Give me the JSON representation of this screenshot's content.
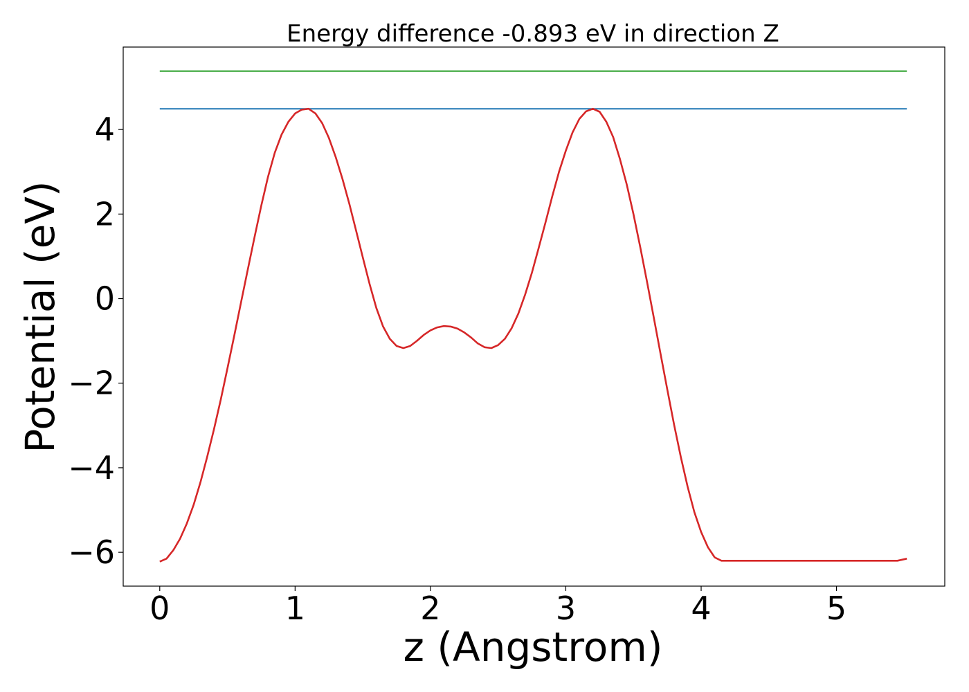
{
  "chart_data": {
    "type": "line",
    "title": "Energy difference -0.893 eV in direction Z",
    "xlabel": "z (Angstrom)",
    "ylabel": "Potential (eV)",
    "xlim": [
      -0.27,
      5.8
    ],
    "ylim": [
      -6.8,
      5.95
    ],
    "grid": false,
    "x_ticks": [
      0,
      1,
      2,
      3,
      4,
      5
    ],
    "x_tick_labels": [
      "0",
      "1",
      "2",
      "3",
      "4",
      "5"
    ],
    "y_ticks": [
      -6,
      -4,
      -2,
      0,
      2,
      4
    ],
    "y_tick_labels": [
      "−6",
      "−4",
      "−2",
      "0",
      "2",
      "4"
    ],
    "series": [
      {
        "color": "#2ca02c",
        "x": [
          0,
          5.52
        ],
        "y": [
          5.38,
          5.38
        ]
      },
      {
        "color": "#1f77b4",
        "x": [
          0,
          5.52
        ],
        "y": [
          4.49,
          4.49
        ]
      },
      {
        "color": "#d62728",
        "x": [
          0,
          0.05,
          0.1,
          0.15,
          0.2,
          0.25,
          0.3,
          0.35,
          0.4,
          0.45,
          0.5,
          0.55,
          0.6,
          0.65,
          0.7,
          0.75,
          0.8,
          0.85,
          0.9,
          0.95,
          1.0,
          1.05,
          1.1,
          1.15,
          1.2,
          1.25,
          1.3,
          1.35,
          1.4,
          1.45,
          1.5,
          1.55,
          1.6,
          1.65,
          1.7,
          1.75,
          1.8,
          1.85,
          1.9,
          1.95,
          2.0,
          2.05,
          2.1,
          2.15,
          2.2,
          2.25,
          2.3,
          2.35,
          2.4,
          2.45,
          2.5,
          2.55,
          2.6,
          2.65,
          2.7,
          2.75,
          2.8,
          2.85,
          2.9,
          2.95,
          3.0,
          3.05,
          3.1,
          3.15,
          3.2,
          3.25,
          3.3,
          3.35,
          3.4,
          3.45,
          3.5,
          3.55,
          3.6,
          3.65,
          3.7,
          3.75,
          3.8,
          3.85,
          3.9,
          3.95,
          4.0,
          4.05,
          4.1,
          4.15,
          4.2,
          4.25,
          4.3,
          4.35,
          4.4,
          4.45,
          4.5,
          4.55,
          4.6,
          4.65,
          4.7,
          4.75,
          4.8,
          4.85,
          4.9,
          4.95,
          5.0,
          5.05,
          5.1,
          5.15,
          5.2,
          5.25,
          5.3,
          5.35,
          5.4,
          5.45,
          5.52
        ],
        "y": [
          -6.22,
          -6.15,
          -5.95,
          -5.68,
          -5.32,
          -4.88,
          -4.35,
          -3.75,
          -3.1,
          -2.4,
          -1.65,
          -0.88,
          -0.1,
          0.68,
          1.45,
          2.2,
          2.88,
          3.45,
          3.88,
          4.18,
          4.38,
          4.47,
          4.49,
          4.38,
          4.15,
          3.8,
          3.35,
          2.83,
          2.25,
          1.62,
          0.98,
          0.35,
          -0.22,
          -0.66,
          -0.95,
          -1.12,
          -1.17,
          -1.12,
          -1.0,
          -0.86,
          -0.75,
          -0.68,
          -0.65,
          -0.66,
          -0.71,
          -0.8,
          -0.92,
          -1.06,
          -1.15,
          -1.17,
          -1.1,
          -0.95,
          -0.7,
          -0.35,
          0.1,
          0.62,
          1.2,
          1.8,
          2.42,
          3.0,
          3.5,
          3.93,
          4.25,
          4.43,
          4.49,
          4.42,
          4.18,
          3.82,
          3.3,
          2.7,
          2.0,
          1.22,
          0.4,
          -0.45,
          -1.3,
          -2.15,
          -2.98,
          -3.75,
          -4.45,
          -5.05,
          -5.52,
          -5.88,
          -6.12,
          -6.2,
          -6.2,
          -6.2,
          -6.2,
          -6.2,
          -6.2,
          -6.2,
          -6.2,
          -6.2,
          -6.2,
          -6.2,
          -6.2,
          -6.2,
          -6.2,
          -6.2,
          -6.2,
          -6.2,
          -6.2,
          -6.2,
          -6.2,
          -6.2,
          -6.2,
          -6.2,
          -6.2,
          -6.2,
          -6.2,
          -6.2,
          -6.15
        ]
      }
    ]
  }
}
